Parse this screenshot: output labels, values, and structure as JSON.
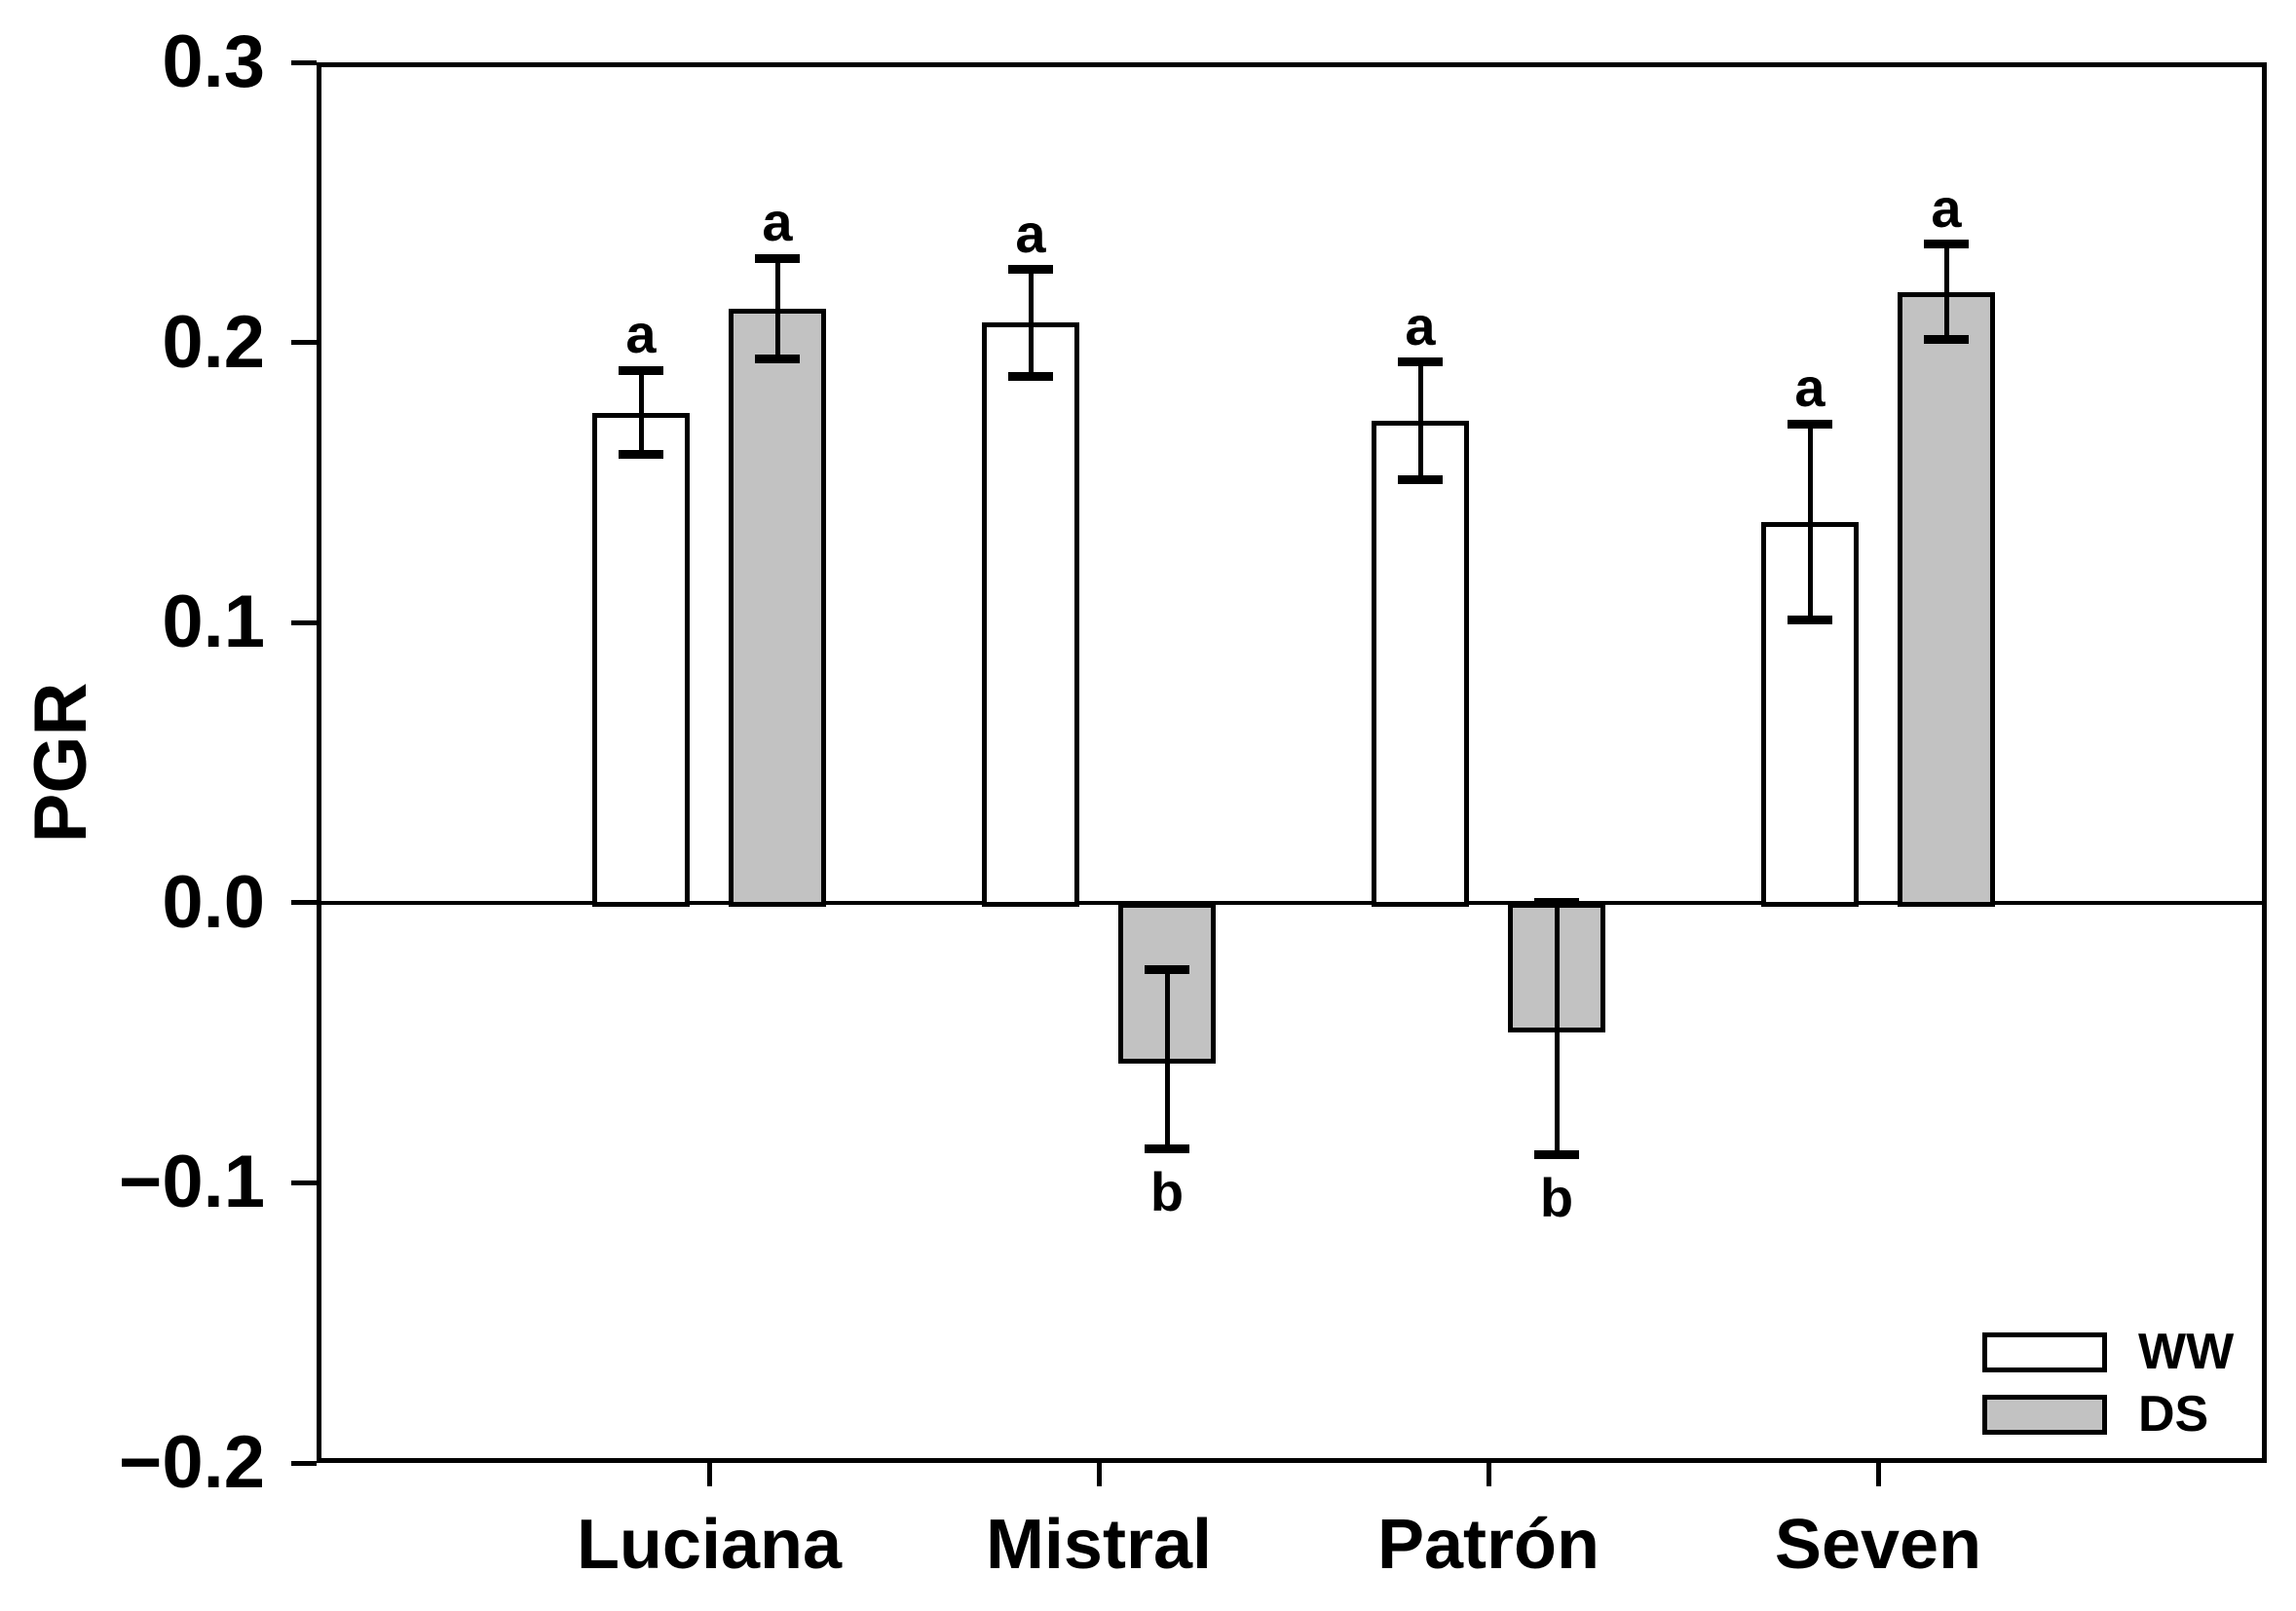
{
  "chart_data": {
    "type": "bar",
    "title": "",
    "xlabel": "",
    "ylabel": "PGR",
    "ylim": [
      -0.2,
      0.3
    ],
    "grid": false,
    "background": "#ffffff",
    "axis_color": "#000000",
    "bar_border_color": "#000000",
    "legend_position": "bottom-right-inside",
    "yticks": [
      {
        "label": "0.3",
        "value": 0.3
      },
      {
        "label": "0.2",
        "value": 0.2
      },
      {
        "label": "0.1",
        "value": 0.1
      },
      {
        "label": "0.0",
        "value": 0.0
      },
      {
        "label": "−0.1",
        "value": -0.1
      },
      {
        "label": "−0.2",
        "value": -0.2
      }
    ],
    "categories": [
      "Luciana",
      "Mistral",
      "Patrón",
      "Seven"
    ],
    "series": [
      {
        "name": "WW",
        "fill": "#ffffff",
        "values": [
          0.175,
          0.207,
          0.172,
          0.136
        ],
        "errors": [
          0.015,
          0.019,
          0.021,
          0.035
        ],
        "sig_letters": [
          "a",
          "a",
          "a",
          "a"
        ]
      },
      {
        "name": "DS",
        "fill": "#c2c2c2",
        "values": [
          0.212,
          -0.056,
          -0.045,
          0.218
        ],
        "errors": [
          0.018,
          0.032,
          0.045,
          0.017
        ],
        "sig_letters": [
          "a",
          "b",
          "b",
          "a"
        ]
      }
    ]
  }
}
